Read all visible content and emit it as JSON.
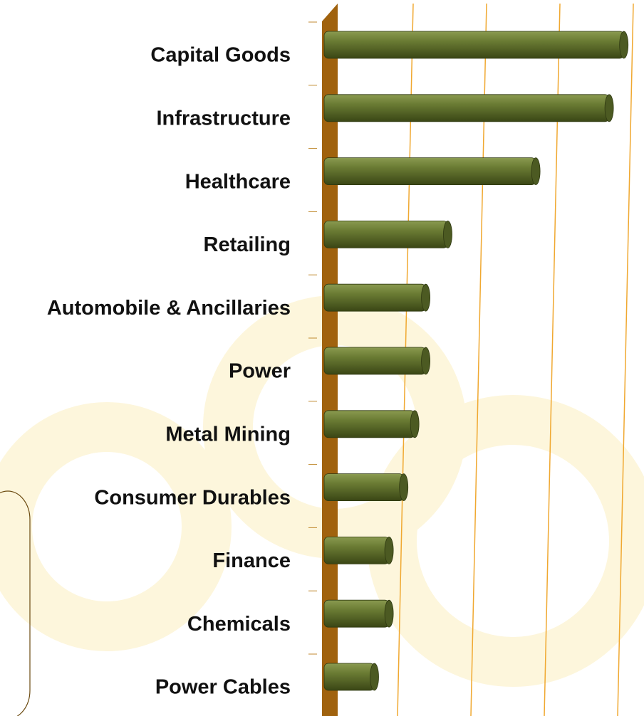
{
  "chart_data": {
    "type": "bar",
    "orientation": "horizontal",
    "categories": [
      "Capital Goods",
      "Infrastructure",
      "Healthcare",
      "Retailing",
      "Automobile & Ancillaries",
      "Power",
      "Metal Mining",
      "Consumer Durables",
      "Finance",
      "Chemicals",
      "Power Cables"
    ],
    "values": [
      3.9,
      3.7,
      2.7,
      1.5,
      1.2,
      1.2,
      1.05,
      0.9,
      0.7,
      0.7,
      0.5
    ],
    "color": "#5a6b2a",
    "xlim": [
      0,
      4
    ],
    "xticks": [
      1,
      2,
      3,
      4
    ],
    "grid": true,
    "grid_color": "#f0a830",
    "wall_color": "#a0620e"
  }
}
